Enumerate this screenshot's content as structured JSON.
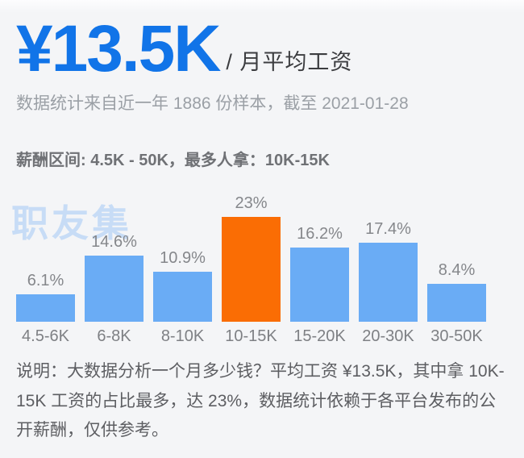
{
  "header": {
    "average_salary": "¥13.5K",
    "salary_unit": "/ 月平均工资",
    "sample_note": "数据统计来自近一年 1886 份样本，截至 2021-01-28",
    "range_line": "薪酬区间: 4.5K - 50K，最多人拿：10K-15K"
  },
  "watermark": "职友集",
  "chart_data": {
    "type": "bar",
    "title": "",
    "xlabel": "",
    "ylabel": "",
    "categories": [
      "4.5-6K",
      "6-8K",
      "8-10K",
      "10-15K",
      "15-20K",
      "20-30K",
      "30-50K"
    ],
    "values": [
      6.1,
      14.6,
      10.9,
      23,
      16.2,
      17.4,
      8.4
    ],
    "value_labels": [
      "6.1%",
      "14.6%",
      "10.9%",
      "23%",
      "16.2%",
      "17.4%",
      "8.4%"
    ],
    "unit": "%",
    "highlight_index": 3,
    "highlight_category": "10-15K",
    "bar_color": "#6aacf5",
    "highlight_color": "#fa6d04",
    "ylim": [
      0,
      25
    ],
    "grid": false,
    "legend": false
  },
  "footer": {
    "description": "说明：大数据分析一个月多少钱？平均工资 ¥13.5K，其中拿 10K-15K 工资的占比最多，达 23%，数据统计依赖于各平台发布的公开薪酬，仅供参考。"
  },
  "colors": {
    "accent_blue": "#1174e8",
    "bar_blue": "#6aacf5",
    "bar_highlight_orange": "#fa6d04",
    "watermark_blue": "#c7dcf6",
    "background": "#f4f5f7"
  }
}
